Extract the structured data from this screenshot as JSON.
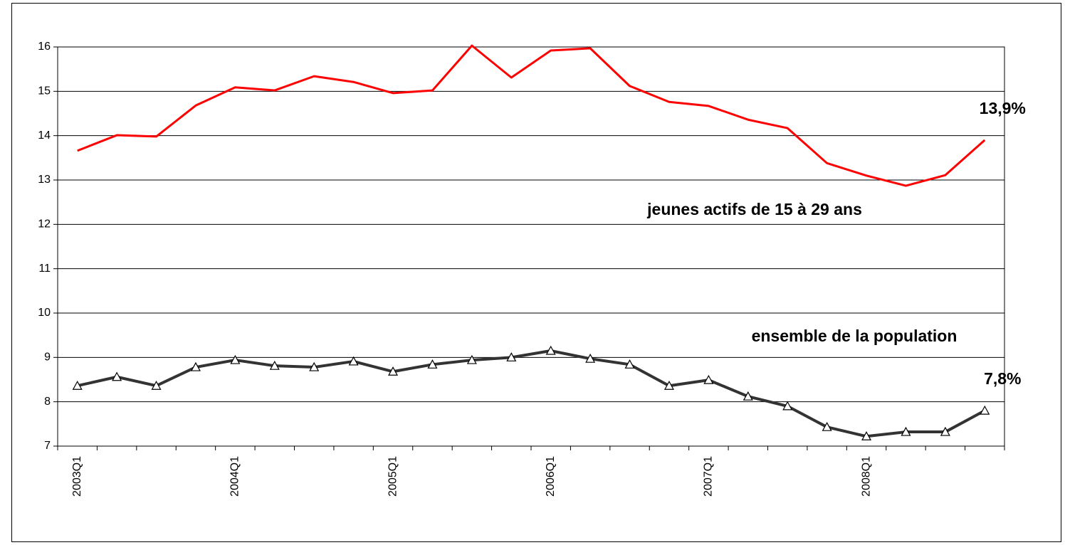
{
  "chart_data": {
    "type": "line",
    "categories": [
      "2003Q1",
      null,
      null,
      null,
      "2004Q1",
      null,
      null,
      null,
      "2005Q1",
      null,
      null,
      null,
      "2006Q1",
      null,
      null,
      null,
      "2007Q1",
      null,
      null,
      null,
      "2008Q1",
      null,
      null,
      null
    ],
    "series": [
      {
        "color": "#ff0000",
        "marker": "none",
        "values": [
          13.66,
          14.01,
          13.98,
          14.68,
          15.09,
          15.02,
          15.34,
          15.21,
          14.96,
          15.02,
          16.03,
          15.31,
          15.92,
          15.97,
          15.12,
          14.76,
          14.67,
          14.36,
          14.17,
          13.38,
          13.1,
          12.87,
          13.11,
          13.9
        ],
        "value_labels": [
          null,
          null,
          null,
          null,
          null,
          null,
          null,
          null,
          null,
          null,
          null,
          null,
          null,
          null,
          null,
          null,
          null,
          null,
          null,
          null,
          null,
          null,
          null,
          "13,9%"
        ]
      },
      {
        "color": "#333333",
        "marker": "triangle",
        "values": [
          8.36,
          8.56,
          8.36,
          8.78,
          8.94,
          8.81,
          8.78,
          8.91,
          8.68,
          8.84,
          8.94,
          9.0,
          9.15,
          8.97,
          8.84,
          8.36,
          8.49,
          8.12,
          7.9,
          7.43,
          7.22,
          7.32,
          7.32,
          7.8
        ],
        "value_labels": [
          null,
          null,
          null,
          null,
          null,
          null,
          null,
          null,
          null,
          null,
          null,
          null,
          null,
          null,
          null,
          null,
          null,
          null,
          null,
          null,
          null,
          null,
          null,
          "7,8%"
        ]
      }
    ],
    "annotations": [
      "jeunes actifs de 15 à 29 ans",
      "ensemble de la population"
    ],
    "ylim": [
      7,
      16
    ],
    "yticks": [
      7,
      8,
      9,
      10,
      11,
      12,
      13,
      14,
      15,
      16
    ],
    "grid": true
  }
}
